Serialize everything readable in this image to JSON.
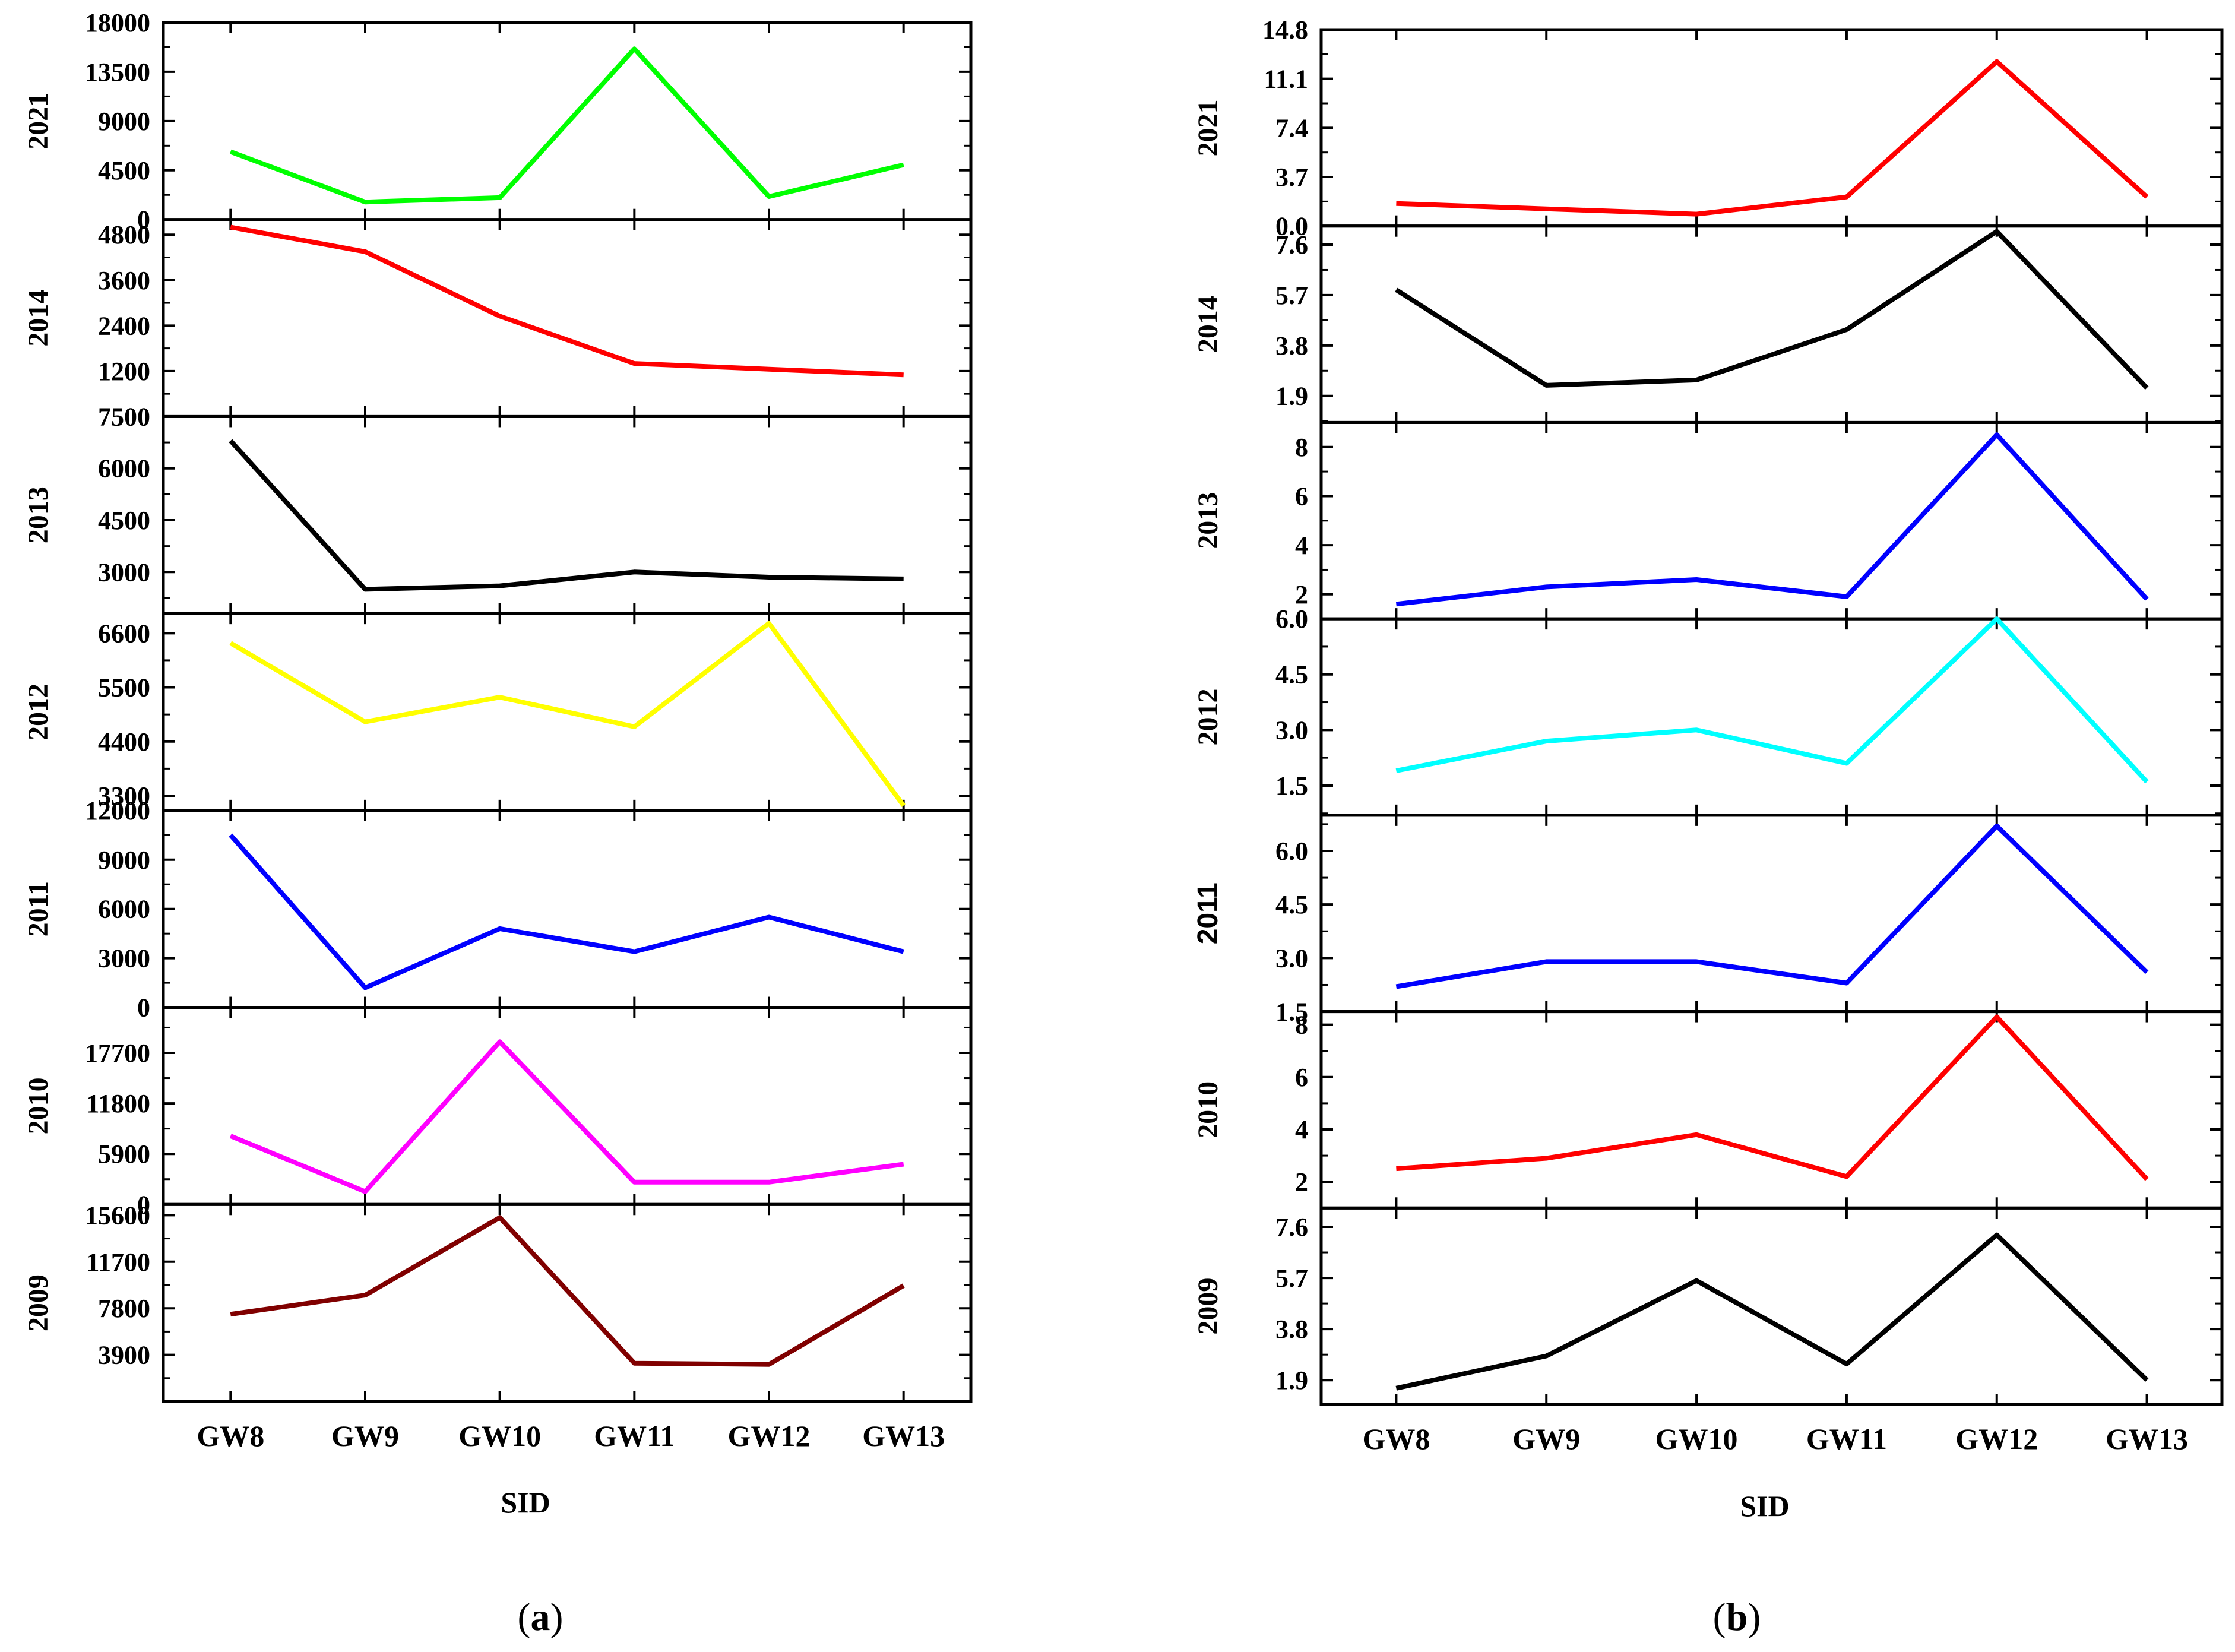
{
  "figure": {
    "captions": [
      "a",
      "b"
    ],
    "x_axis_title": "SID"
  },
  "chart_data": [
    {
      "type": "line",
      "panel": "a",
      "xlabel": "SID",
      "categories": [
        "GW8",
        "GW9",
        "GW10",
        "GW11",
        "GW12",
        "GW13"
      ],
      "subplots": [
        {
          "name": "2021",
          "color": "#00ff00",
          "ylim": [
            0,
            18000
          ],
          "ticks": [
            "0",
            "4500",
            "9000",
            "13500",
            "18000"
          ],
          "values": [
            6200,
            1600,
            2000,
            15600,
            2100,
            5000
          ]
        },
        {
          "name": "2014",
          "color": "#ff0000",
          "ylim": [
            0,
            5200
          ],
          "ticks": [
            "1200",
            "2400",
            "3600",
            "4800"
          ],
          "values": [
            5000,
            4350,
            2650,
            1400,
            1250,
            1100
          ]
        },
        {
          "name": "2013",
          "color": "#000000",
          "ylim": [
            1800,
            7500
          ],
          "ticks": [
            "3000",
            "4500",
            "6000",
            "7500"
          ],
          "values": [
            6800,
            2500,
            2600,
            3000,
            2850,
            2800
          ]
        },
        {
          "name": "2012",
          "color": "#ffff00",
          "ylim": [
            3000,
            7000
          ],
          "ticks": [
            "3300",
            "4400",
            "5500",
            "6600"
          ],
          "values": [
            6400,
            4800,
            5300,
            4700,
            6800,
            3100
          ]
        },
        {
          "name": "2011",
          "color": "#0000ff",
          "ylim": [
            0,
            12000
          ],
          "ticks": [
            "0",
            "3000",
            "6000",
            "9000",
            "12000"
          ],
          "values": [
            10500,
            1200,
            4800,
            3400,
            5500,
            3400
          ]
        },
        {
          "name": "2010",
          "color": "#ff00ff",
          "ylim": [
            0,
            23000
          ],
          "ticks": [
            "0",
            "5900",
            "11800",
            "17700"
          ],
          "values": [
            8000,
            1500,
            19000,
            2600,
            2600,
            4700
          ]
        },
        {
          "name": "2009",
          "color": "#800000",
          "ylim": [
            0,
            16500
          ],
          "ticks": [
            "3900",
            "7800",
            "11700",
            "15600"
          ],
          "values": [
            7300,
            8900,
            15400,
            3200,
            3100,
            9700
          ]
        }
      ]
    },
    {
      "type": "line",
      "panel": "b",
      "xlabel": "SID",
      "categories": [
        "GW8",
        "GW9",
        "GW10",
        "GW11",
        "GW12",
        "GW13"
      ],
      "subplots": [
        {
          "name": "2021",
          "color": "#ff0000",
          "ylim": [
            0,
            14.8
          ],
          "ticks": [
            "0.0",
            "3.7",
            "7.4",
            "11.1",
            "14.8"
          ],
          "values": [
            1.7,
            1.3,
            0.9,
            2.2,
            12.4,
            2.2
          ]
        },
        {
          "name": "2014",
          "color": "#000000",
          "ylim": [
            0.9,
            8.3
          ],
          "ticks": [
            "1.9",
            "3.8",
            "5.7",
            "7.6"
          ],
          "values": [
            5.9,
            2.3,
            2.5,
            4.4,
            8.1,
            2.2
          ]
        },
        {
          "name": "2013",
          "color": "#0000ff",
          "ylim": [
            1,
            9
          ],
          "ticks": [
            "2",
            "4",
            "6",
            "8"
          ],
          "values": [
            1.6,
            2.3,
            2.6,
            1.9,
            8.5,
            1.8
          ]
        },
        {
          "name": "2012",
          "color": "#00ffff",
          "ylim": [
            0.7,
            6.0
          ],
          "ticks": [
            "1.5",
            "3.0",
            "4.5",
            "6.0"
          ],
          "values": [
            1.9,
            2.7,
            3.0,
            2.1,
            6.0,
            1.6
          ]
        },
        {
          "name": "2011",
          "color": "#0000ff",
          "ylim": [
            1.5,
            7.0
          ],
          "ticks": [
            "1.5",
            "3.0",
            "4.5",
            "6.0"
          ],
          "values": [
            2.2,
            2.9,
            2.9,
            2.3,
            6.7,
            2.6
          ]
        },
        {
          "name": "2010",
          "color": "#ff0000",
          "ylim": [
            1,
            8.5
          ],
          "ticks": [
            "2",
            "4",
            "6",
            "8"
          ],
          "values": [
            2.5,
            2.9,
            3.8,
            2.2,
            8.3,
            2.1
          ]
        },
        {
          "name": "2009",
          "color": "#000000",
          "ylim": [
            1.0,
            8.3
          ],
          "ticks": [
            "1.9",
            "3.8",
            "5.7",
            "7.6"
          ],
          "values": [
            1.6,
            2.8,
            5.6,
            2.5,
            7.3,
            1.9
          ]
        }
      ]
    }
  ]
}
